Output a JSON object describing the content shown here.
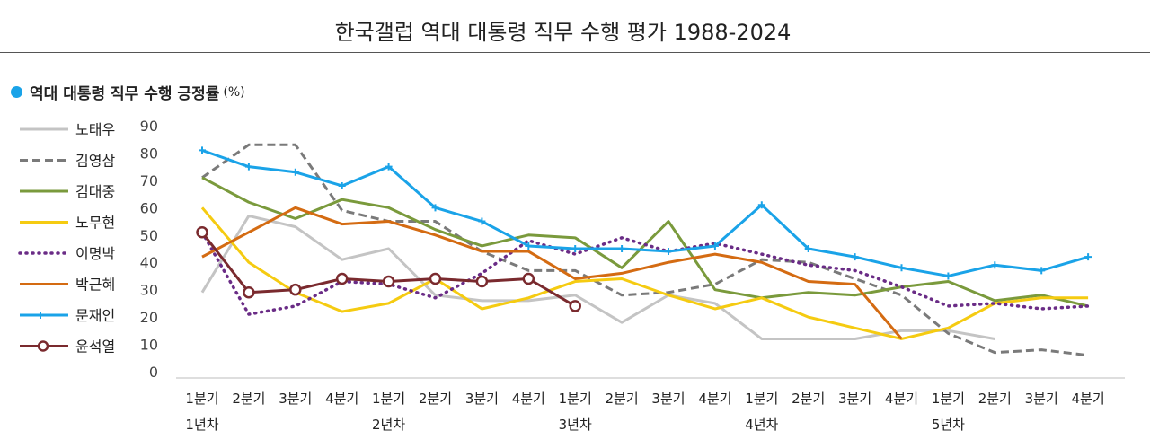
{
  "title": "한국갤럽 역대 대통령 직무 수행 평가 1988-2024",
  "subtitle": "역대 대통령 직무 수행 긍정률",
  "unit": "(%)",
  "chart_data": {
    "type": "line",
    "ylim": [
      0,
      90
    ],
    "y_ticks": [
      0,
      10,
      20,
      30,
      40,
      50,
      60,
      70,
      80,
      90
    ],
    "grid": false,
    "legend_position": "left",
    "quarter_labels": [
      "1분기",
      "2분기",
      "3분기",
      "4분기",
      "1분기",
      "2분기",
      "3분기",
      "4분기",
      "1분기",
      "2분기",
      "3분기",
      "4분기",
      "1분기",
      "2분기",
      "3분기",
      "4분기",
      "1분기",
      "2분기",
      "3분기",
      "4분기"
    ],
    "year_labels": [
      {
        "index": 0,
        "label": "1년차"
      },
      {
        "index": 4,
        "label": "2년차"
      },
      {
        "index": 8,
        "label": "3년차"
      },
      {
        "index": 12,
        "label": "4년차"
      },
      {
        "index": 16,
        "label": "5년차"
      }
    ],
    "series": [
      {
        "name": "노태우",
        "color": "#c4c4c4",
        "style": "solid",
        "values": [
          29,
          57,
          53,
          41,
          45,
          28,
          26,
          26,
          28,
          18,
          28,
          25,
          12,
          12,
          12,
          15,
          15,
          12,
          null,
          null
        ]
      },
      {
        "name": "김영삼",
        "color": "#7a7a7a",
        "style": "dashed",
        "values": [
          71,
          83,
          83,
          59,
          55,
          55,
          44,
          37,
          37,
          28,
          29,
          32,
          41,
          40,
          34,
          28,
          14,
          7,
          8,
          6
        ]
      },
      {
        "name": "김대중",
        "color": "#7a9a3c",
        "style": "solid",
        "values": [
          71,
          62,
          56,
          63,
          60,
          52,
          46,
          50,
          49,
          38,
          55,
          30,
          27,
          29,
          28,
          31,
          33,
          26,
          28,
          24
        ]
      },
      {
        "name": "노무현",
        "color": "#f5cb11",
        "style": "solid",
        "values": [
          60,
          40,
          29,
          22,
          25,
          34,
          23,
          27,
          33,
          34,
          28,
          23,
          27,
          20,
          16,
          12,
          16,
          25,
          27,
          27
        ]
      },
      {
        "name": "이명박",
        "color": "#6a2c86",
        "style": "dotted",
        "values": [
          51,
          21,
          24,
          33,
          32,
          27,
          36,
          48,
          43,
          49,
          44,
          47,
          43,
          39,
          37,
          31,
          24,
          25,
          23,
          24
        ]
      },
      {
        "name": "박근혜",
        "color": "#d46b12",
        "style": "solid",
        "values": [
          42,
          51,
          60,
          54,
          55,
          50,
          44,
          44,
          34,
          36,
          40,
          43,
          40,
          33,
          32,
          12,
          null,
          null,
          null,
          null
        ]
      },
      {
        "name": "문재인",
        "color": "#1aa3e8",
        "style": "solid_marker",
        "values": [
          81,
          75,
          73,
          68,
          75,
          60,
          55,
          46,
          45,
          45,
          44,
          46,
          61,
          45,
          42,
          38,
          35,
          39,
          37,
          42
        ]
      },
      {
        "name": "윤석열",
        "color": "#7a2a2e",
        "style": "circle_marker",
        "values": [
          51,
          29,
          30,
          34,
          33,
          34,
          33,
          34,
          24,
          null,
          null,
          null,
          null,
          null,
          null,
          null,
          null,
          null,
          null,
          null
        ]
      }
    ]
  }
}
